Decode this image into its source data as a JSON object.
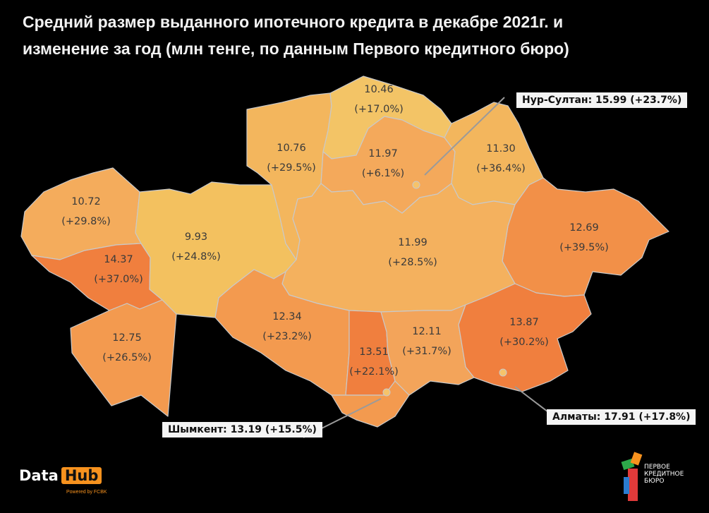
{
  "title_lines": [
    "Средний размер выданного ипотечного кредита в декабре 2021г. и",
    "изменение за год (млн тенге, по данным Первого кредитного бюро)"
  ],
  "chart_data": {
    "type": "choropleth map",
    "regions": [
      {
        "value": "10.72",
        "change": "(+29.8%)"
      },
      {
        "value": "14.37",
        "change": "(+37.0%)"
      },
      {
        "value": "12.75",
        "change": "(+26.5%)"
      },
      {
        "value": "9.93",
        "change": "(+24.8%)"
      },
      {
        "value": "10.76",
        "change": "(+29.5%)"
      },
      {
        "value": "10.46",
        "change": "(+17.0%)"
      },
      {
        "value": "11.97",
        "change": "(+6.1%)"
      },
      {
        "value": "11.30",
        "change": "(+36.4%)"
      },
      {
        "value": "12.69",
        "change": "(+39.5%)"
      },
      {
        "value": "11.99",
        "change": "(+28.5%)"
      },
      {
        "value": "12.34",
        "change": "(+23.2%)"
      },
      {
        "value": "13.51",
        "change": "(+22.1%)"
      },
      {
        "value": "12.11",
        "change": "(+31.7%)"
      },
      {
        "value": "13.87",
        "change": "(+30.2%)"
      }
    ],
    "cities": [
      {
        "label": "Нур-Султан: 15.99 (+23.7%)"
      },
      {
        "label": "Алматы: 17.91 (+17.8%)"
      },
      {
        "label": "Шымкент: 13.19 (+15.5%)"
      }
    ],
    "colors": {
      "light": "#f3c15f",
      "mid": "#f4a95b",
      "strong": "#f29048",
      "deep": "#f07f3e",
      "border": "#c9c9c9"
    }
  },
  "brand": {
    "datahub_a": "Data",
    "datahub_b": "Hub",
    "powered": "Powered by FCBK",
    "pkb_lines": [
      "ПЕРВОЕ",
      "КРЕДИТНОЕ",
      "БЮРО"
    ]
  }
}
